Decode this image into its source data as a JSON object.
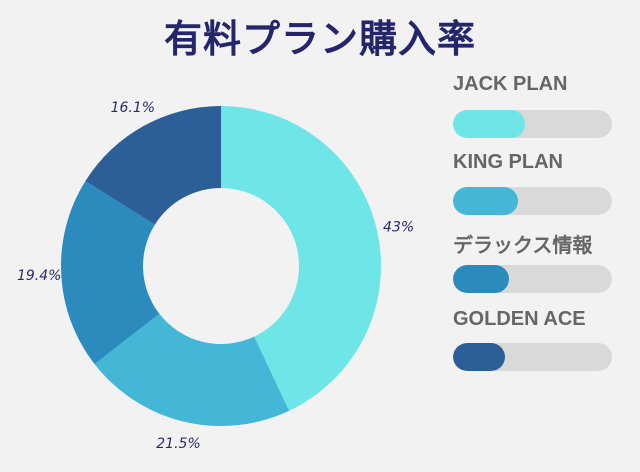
{
  "title": "有料プラン購入率",
  "chart_data": {
    "type": "pie",
    "style": "donut",
    "categories": [
      "JACK PLAN",
      "KING PLAN",
      "デラックス情報",
      "GOLDEN ACE"
    ],
    "values": [
      43,
      21.5,
      19.4,
      16.1
    ],
    "labels": [
      "43%",
      "21.5%",
      "19.4%",
      "16.1%"
    ],
    "colors": [
      "#6ee6e8",
      "#44b6d6",
      "#2c8bbd",
      "#2c5f98"
    ],
    "legend_placement": "right"
  },
  "legend": [
    {
      "label": "JACK PLAN",
      "level": 0.45,
      "color": "#6ee6e8"
    },
    {
      "label": "KING PLAN",
      "level": 0.41,
      "color": "#44b6d6"
    },
    {
      "label": "デラックス情報",
      "level": 0.35,
      "color": "#2c8bbd"
    },
    {
      "label": "GOLDEN ACE",
      "level": 0.33,
      "color": "#2c5f98"
    }
  ]
}
